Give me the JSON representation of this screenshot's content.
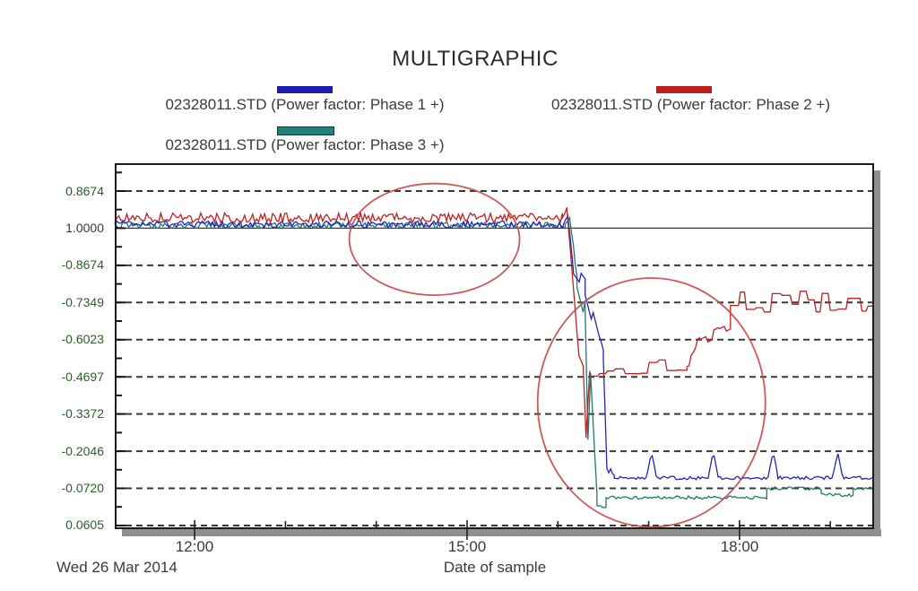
{
  "title": "MULTIGRAPHIC",
  "legend": [
    {
      "label": "02328011.STD (Power factor: Phase 1 +)",
      "color": "#1c1cb4",
      "swatch": "blue-line-swatch"
    },
    {
      "label": "02328011.STD (Power factor: Phase 2 +)",
      "color": "#bf1d1d",
      "swatch": "red-line-swatch"
    },
    {
      "label": "02328011.STD (Power factor: Phase 3 +)",
      "color": "#23807a",
      "swatch": "teal-line-swatch"
    }
  ],
  "axis": {
    "y_ticks": [
      {
        "label": "0.8674",
        "emph": false
      },
      {
        "label": "1.0000",
        "emph": true
      },
      {
        "label": "-0.8674",
        "emph": false
      },
      {
        "label": "-0.7349",
        "emph": false
      },
      {
        "label": "-0.6023",
        "emph": false
      },
      {
        "label": "-0.4697",
        "emph": false
      },
      {
        "label": "-0.3372",
        "emph": false
      },
      {
        "label": "-0.2046",
        "emph": false
      },
      {
        "label": "-0.0720",
        "emph": false
      },
      {
        "label": "0.0605",
        "emph": false
      }
    ],
    "x_ticks": [
      {
        "label": "12:00",
        "hour": 12
      },
      {
        "label": "15:00",
        "hour": 15
      },
      {
        "label": "18:00",
        "hour": 18
      }
    ],
    "x_minor_hours": [
      13,
      14,
      16,
      17,
      19
    ],
    "x_range_hours": [
      11.12,
      19.48
    ],
    "xlabel": "Date of sample",
    "date_label": "Wed 26 Mar 2014",
    "grid_color": "#333d33",
    "unity_line_color": "#3a3a3a"
  },
  "chart_data": {
    "type": "line",
    "title": "MULTIGRAPHIC",
    "xlabel": "Date of sample",
    "date_label": "Wed 26 Mar 2014",
    "y_axis_labels_top_to_bottom": [
      "0.8674",
      "1.0000",
      "-0.8674",
      "-0.7349",
      "-0.6023",
      "-0.4697",
      "-0.3372",
      "-0.2046",
      "-0.0720",
      "0.0605"
    ],
    "y_note": "y given in tick-units: 0 = 0.8674 gridline, 1 = 1.0000 line, ... 9 = 0.0605 gridline",
    "x_note": "x given in hours of day on Wed 26 Mar 2014",
    "series": [
      {
        "name": "02328011.STD (Power factor: Phase 3 +)",
        "color": "#1e7a72",
        "segments": [
          [
            11.12,
            16.08,
            0.92,
            0.92,
            0.085
          ],
          [
            16.08,
            16.13,
            0.92,
            0.72,
            0.04
          ],
          [
            16.13,
            16.21,
            0.72,
            2.3,
            0.08
          ],
          [
            16.21,
            16.3,
            2.3,
            3.2,
            0.3
          ],
          [
            16.3,
            16.33,
            3.2,
            6.6,
            0.1
          ],
          [
            16.33,
            16.36,
            6.6,
            4.95,
            0.08
          ],
          [
            16.36,
            16.43,
            4.95,
            8.15,
            0.08
          ],
          [
            16.43,
            16.53,
            8.2,
            8.2,
            0.33
          ],
          [
            16.53,
            18.3,
            8.25,
            8.25,
            0.045
          ],
          [
            18.3,
            18.9,
            8.0,
            8.0,
            0.045
          ],
          [
            18.9,
            19.25,
            8.18,
            8.18,
            0.045
          ],
          [
            19.25,
            19.48,
            8.0,
            8.0,
            0.045
          ]
        ],
        "spikes": []
      },
      {
        "name": "02328011.STD (Power factor: Phase 1 +)",
        "color": "#2424bc",
        "segments": [
          [
            11.12,
            16.06,
            0.9,
            0.9,
            0.095
          ],
          [
            16.06,
            16.11,
            0.9,
            0.66,
            0.04
          ],
          [
            16.11,
            16.17,
            0.66,
            2.1,
            0.06
          ],
          [
            16.17,
            16.3,
            2.1,
            2.55,
            0.22
          ],
          [
            16.3,
            16.5,
            2.55,
            4.5,
            0.25
          ],
          [
            16.5,
            16.54,
            4.5,
            7.5,
            0.05
          ],
          [
            16.54,
            16.62,
            7.5,
            7.6,
            0.08
          ],
          [
            16.62,
            19.48,
            7.72,
            7.72,
            0.045
          ]
        ],
        "spikes": [
          [
            17.03,
            7.02,
            0.055
          ],
          [
            17.71,
            7.0,
            0.055
          ],
          [
            18.37,
            7.0,
            0.055
          ],
          [
            19.08,
            7.02,
            0.055
          ]
        ]
      },
      {
        "name": "02328011.STD (Power factor: Phase 2 +)",
        "color": "#c22020",
        "segments": [
          [
            11.12,
            16.05,
            0.72,
            0.72,
            0.13
          ],
          [
            16.05,
            16.1,
            0.7,
            0.48,
            0.04
          ],
          [
            16.1,
            16.23,
            0.55,
            4.4,
            0.06
          ],
          [
            16.23,
            16.28,
            4.55,
            4.85,
            0.2
          ],
          [
            16.28,
            16.31,
            4.85,
            6.6,
            0.05
          ],
          [
            16.31,
            16.35,
            6.6,
            4.8,
            0.05
          ],
          [
            16.35,
            17.42,
            4.75,
            4.75,
            0.24
          ],
          [
            17.42,
            17.56,
            4.75,
            3.95,
            0.12
          ],
          [
            17.56,
            17.9,
            3.95,
            3.55,
            0.26
          ],
          [
            17.9,
            19.48,
            2.95,
            2.95,
            0.33
          ]
        ],
        "spikes": []
      }
    ],
    "annotations": [
      {
        "shape": "ellipse",
        "color": "#c84848",
        "cx_hour": 14.64,
        "cy_tick": 1.3,
        "rx_hour": 0.938,
        "ry_tick": 1.5
      },
      {
        "shape": "ellipse",
        "color": "#c84848",
        "cx_hour": 17.03,
        "cy_tick": 5.69,
        "rx_hour": 1.254,
        "ry_tick": 3.35
      }
    ]
  }
}
